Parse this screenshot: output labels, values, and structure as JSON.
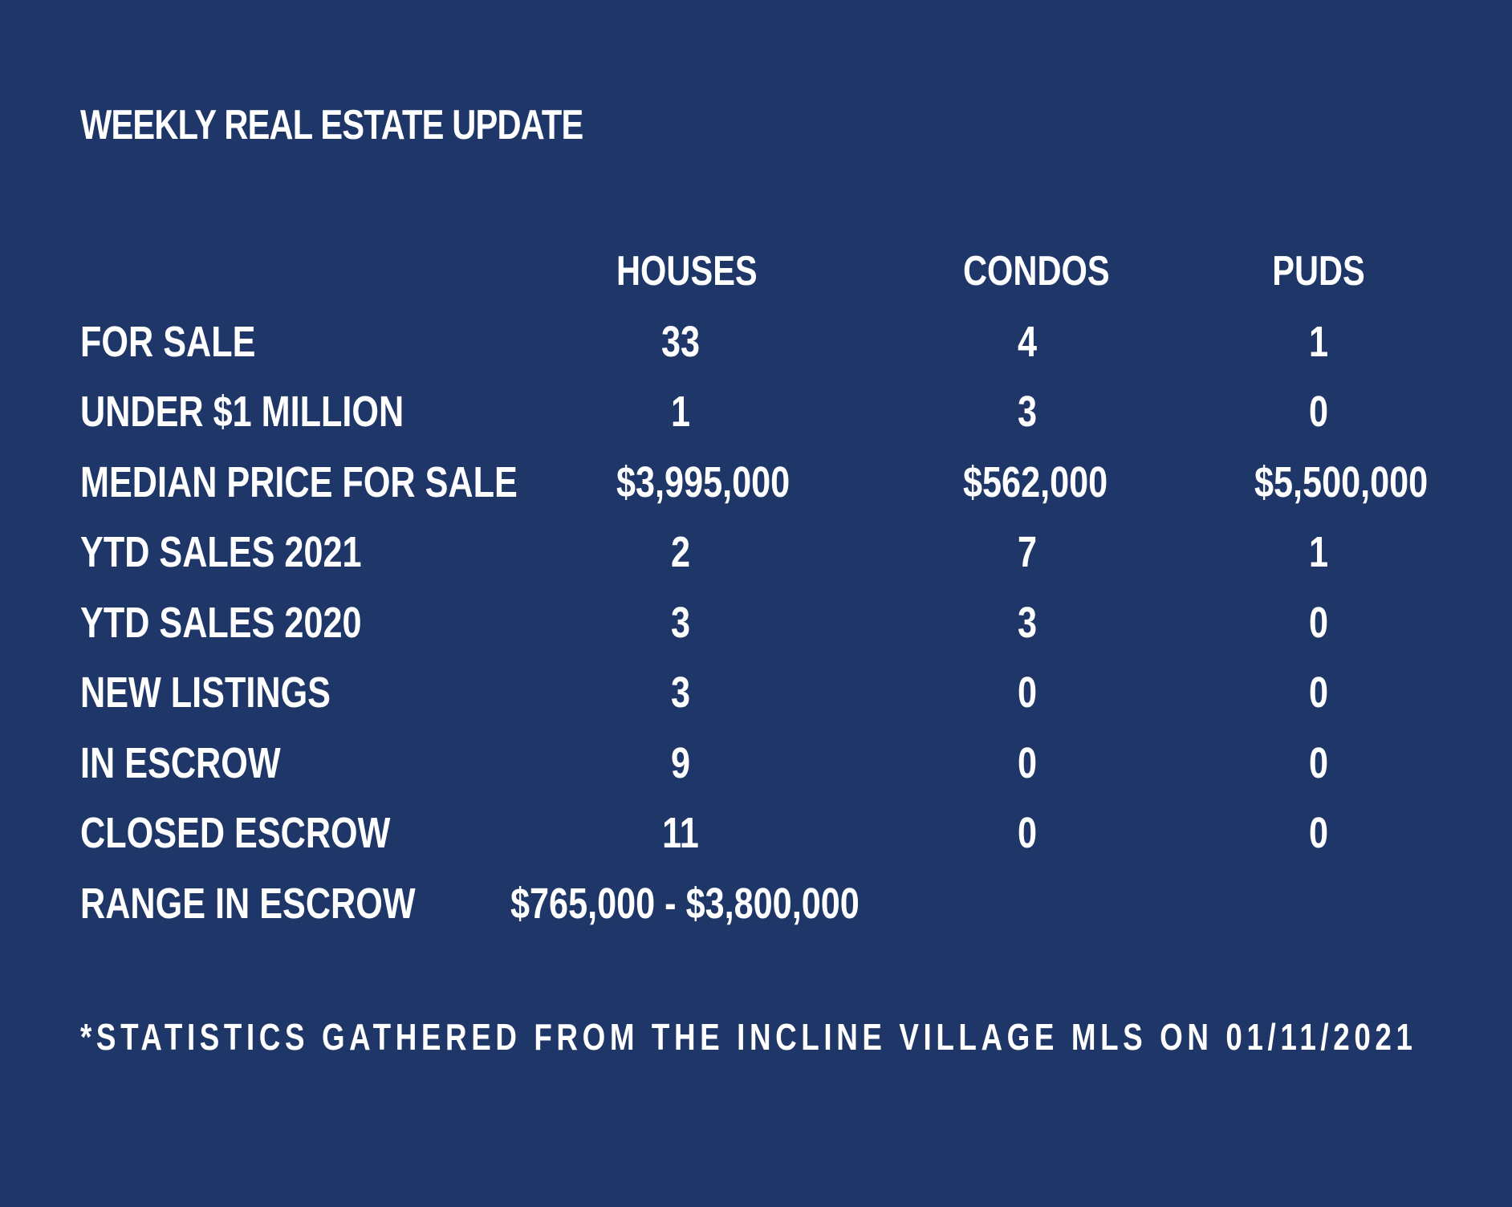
{
  "title": "WEEKLY REAL ESTATE UPDATE",
  "table": {
    "columns": [
      "HOUSES",
      "CONDOS",
      "PUDS"
    ],
    "rows": [
      {
        "label": "FOR SALE",
        "values": [
          "33",
          "4",
          "1"
        ]
      },
      {
        "label": "UNDER $1 MILLION",
        "values": [
          "1",
          "3",
          "0"
        ]
      },
      {
        "label": "MEDIAN PRICE FOR SALE",
        "values": [
          "$3,995,000",
          "$562,000",
          "$5,500,000"
        ]
      },
      {
        "label": "YTD SALES 2021",
        "values": [
          "2",
          "7",
          "1"
        ]
      },
      {
        "label": "YTD SALES 2020",
        "values": [
          "3",
          "3",
          "0"
        ]
      },
      {
        "label": "NEW LISTINGS",
        "values": [
          "3",
          "0",
          "0"
        ]
      },
      {
        "label": "IN ESCROW",
        "values": [
          "9",
          "0",
          "0"
        ]
      },
      {
        "label": "CLOSED ESCROW",
        "values": [
          "11",
          "0",
          "0"
        ]
      }
    ],
    "range_row": {
      "label": "RANGE IN ESCROW",
      "value": "$765,000 - $3,800,000"
    }
  },
  "footnote": "*STATISTICS GATHERED FROM THE INCLINE VILLAGE MLS ON 01/11/2021"
}
